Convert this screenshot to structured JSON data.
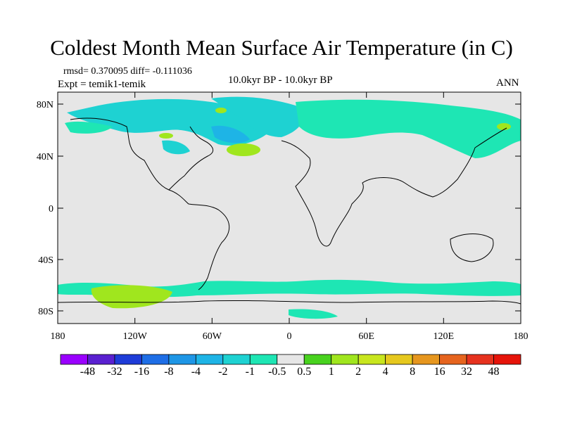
{
  "title": "Coldest Month Mean Surface Air Temperature (in C)",
  "stats": "rmsd= 0.370095 diff= -0.111036",
  "experiment": "Expt = temik1-temik",
  "period": "10.0kyr BP - 10.0kyr BP",
  "season": "ANN",
  "map": {
    "lat_ticks": [
      "80N",
      "40N",
      "0",
      "40S",
      "80S"
    ],
    "lon_ticks": [
      "180",
      "120W",
      "60W",
      "0",
      "60E",
      "120E",
      "180"
    ],
    "ocean_color": "#e6e6e6"
  },
  "colorbar": {
    "labels": [
      "-48",
      "-32",
      "-16",
      "-8",
      "-4",
      "-2",
      "-1",
      "-0.5",
      "0.5",
      "1",
      "2",
      "4",
      "8",
      "16",
      "32",
      "48"
    ],
    "colors": [
      "#9a00ff",
      "#5a20d0",
      "#1e3cd8",
      "#1e6ee6",
      "#1e96e6",
      "#1eb4e6",
      "#1ed2d2",
      "#1ee6b4",
      "#e6e6e6",
      "#48d21e",
      "#a0e61e",
      "#c8e61e",
      "#e6c81e",
      "#e6961e",
      "#e6641e",
      "#e6321e",
      "#e6140a"
    ]
  }
}
